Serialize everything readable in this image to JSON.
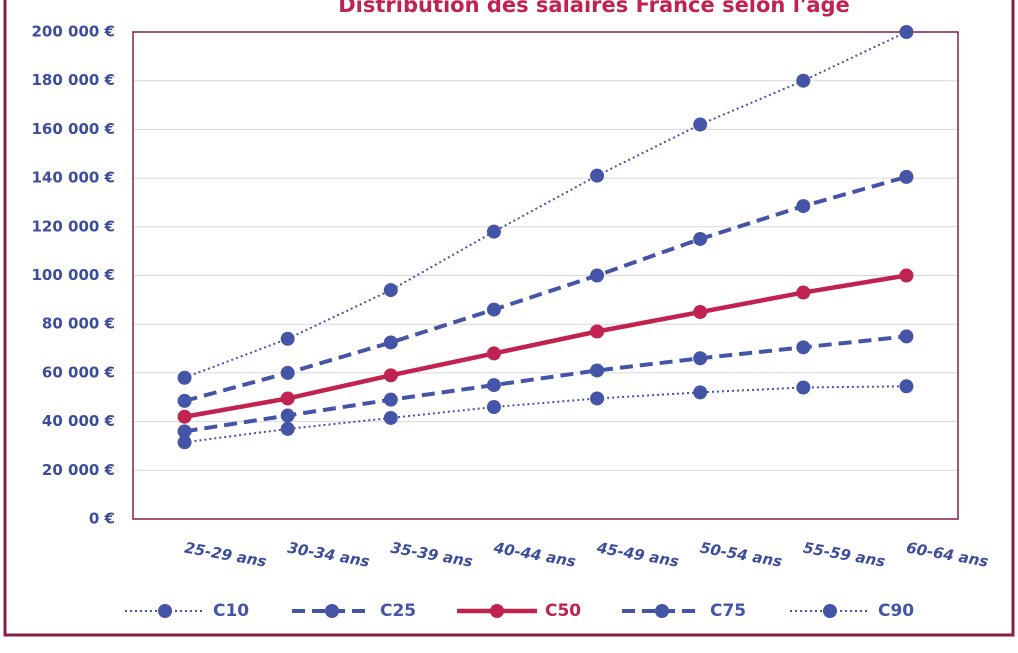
{
  "chart_data": {
    "type": "line",
    "title": "Distribution des salaires France selon l'âge",
    "categories": [
      "25-29 ans",
      "30-34 ans",
      "35-39 ans",
      "40-44 ans",
      "45-49 ans",
      "50-54 ans",
      "55-59 ans",
      "60-64 ans"
    ],
    "series": [
      {
        "name": "C10",
        "color": "#4455a8",
        "dash": "dotted",
        "values": [
          31500,
          37000,
          41500,
          46000,
          49500,
          52000,
          54000,
          54500
        ]
      },
      {
        "name": "C25",
        "color": "#4455a8",
        "dash": "dashed",
        "values": [
          36000,
          42500,
          49000,
          55000,
          61000,
          66000,
          70500,
          75000
        ]
      },
      {
        "name": "C50",
        "color": "#c2224f",
        "dash": "solid",
        "values": [
          42000,
          49500,
          59000,
          68000,
          77000,
          85000,
          93000,
          100000
        ]
      },
      {
        "name": "C75",
        "color": "#4455a8",
        "dash": "dashed",
        "values": [
          48500,
          60000,
          72500,
          86000,
          100000,
          115000,
          128500,
          140500
        ]
      },
      {
        "name": "C90",
        "color": "#4455a8",
        "dash": "dotted",
        "values": [
          58000,
          74000,
          94000,
          118000,
          141000,
          162000,
          180000,
          200000
        ]
      }
    ],
    "ylim": [
      0,
      200000
    ],
    "yticks": [
      {
        "value": 0,
        "label": "0 €"
      },
      {
        "value": 20000,
        "label": "20 000 €"
      },
      {
        "value": 40000,
        "label": "40 000 €"
      },
      {
        "value": 60000,
        "label": "60 000 €"
      },
      {
        "value": 80000,
        "label": "80 000 €"
      },
      {
        "value": 100000,
        "label": "100 000 €"
      },
      {
        "value": 120000,
        "label": "120 000 €"
      },
      {
        "value": 140000,
        "label": "140 000 €"
      },
      {
        "value": 160000,
        "label": "160 000 €"
      },
      {
        "value": 180000,
        "label": "180 000 €"
      },
      {
        "value": 200000,
        "label": "200 000 €"
      }
    ],
    "grid": true,
    "legend": "bottom"
  }
}
